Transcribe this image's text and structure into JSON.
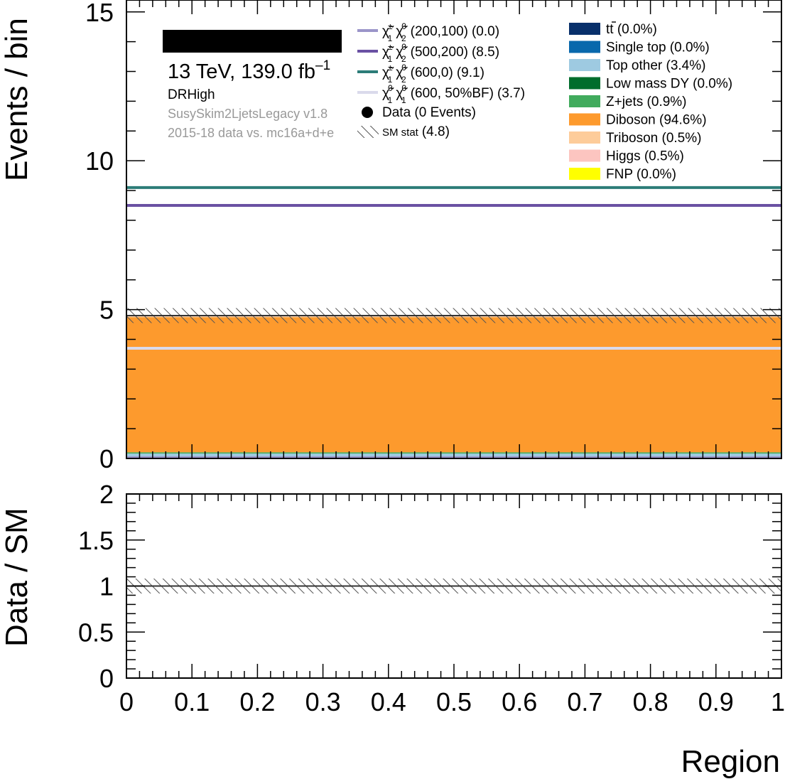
{
  "chart_data": {
    "type": "bar",
    "x_range": [
      0,
      1
    ],
    "x_ticks": [
      "0",
      "0.1",
      "0.2",
      "0.3",
      "0.4",
      "0.5",
      "0.6",
      "0.7",
      "0.8",
      "0.9",
      "1"
    ],
    "xlabel": "Region",
    "main": {
      "ylabel": "Events / bin",
      "ylim": [
        0,
        15.4
      ],
      "y_ticks": [
        "0",
        "5",
        "10",
        "15"
      ],
      "stack": [
        {
          "name": "Top other",
          "value": 0.163
        },
        {
          "name": "Z+jets",
          "value": 0.043
        },
        {
          "name": "Diboson",
          "value": 4.541
        },
        {
          "name": "Triboson",
          "value": 0.024
        },
        {
          "name": "Higgs",
          "value": 0.024
        }
      ],
      "sm_total": 4.8,
      "sm_stat_band": [
        4.55,
        5.05
      ],
      "signals": [
        {
          "value": 0.0
        },
        {
          "value": 8.5
        },
        {
          "value": 9.1
        },
        {
          "value": 3.7
        }
      ]
    },
    "ratio": {
      "ylabel": "Data / SM",
      "ylim": [
        0,
        2
      ],
      "y_ticks": [
        "0",
        "0.5",
        "1",
        "1.5",
        "2"
      ],
      "band": [
        0.95,
        1.05
      ],
      "line": 1
    }
  },
  "labels": {
    "energy": "13 TeV, 139.0 fb",
    "energy_sup": "–1",
    "region": "DRHigh",
    "tag": "SusySkim2LjetsLegacy v1.8",
    "data_desc": "2015-18 data vs. mc16a+d+e"
  },
  "legend_signals": [
    {
      "sub1": "±",
      "sub2": "0",
      "low1": "1",
      "low2": "2",
      "mass": "(200,100)",
      "yield": "(0.0)",
      "color": "#9b95c9"
    },
    {
      "sub1": "±",
      "sub2": "0",
      "low1": "1",
      "low2": "2",
      "mass": "(500,200)",
      "yield": "(8.5)",
      "color": "#6a51a3"
    },
    {
      "sub1": "±",
      "sub2": "0",
      "low1": "1",
      "low2": "2",
      "mass": "(600,0)",
      "yield": "(9.1)",
      "color": "#2c7c78"
    },
    {
      "sub1": "0",
      "sub2": "0",
      "low1": "1",
      "low2": "1",
      "mass": "(600, 50%BF)",
      "yield": "(3.7)",
      "color": "#dadaeb"
    }
  ],
  "legend_data": "Data (0 Events)",
  "legend_smstat": {
    "label": "SM stat",
    "value": "(4.8)"
  },
  "legend_bkg": [
    {
      "label": "t",
      "label_rest": " (0.0%)",
      "color": "#08306b",
      "ttbar": true
    },
    {
      "label": "Single top (0.0%)",
      "color": "#0868ac"
    },
    {
      "label": "Top other (3.4%)",
      "color": "#9ecae1"
    },
    {
      "label": "Low mass DY (0.0%)",
      "color": "#006d2c"
    },
    {
      "label": "Z+jets (0.9%)",
      "color": "#41ab5d"
    },
    {
      "label": "Diboson (94.6%)",
      "color": "#fd9a2d"
    },
    {
      "label": "Triboson (0.5%)",
      "color": "#fdcc9a"
    },
    {
      "label": "Higgs (0.5%)",
      "color": "#fcc5c0"
    },
    {
      "label": "FNP (0.0%)",
      "color": "#ffff00"
    }
  ]
}
